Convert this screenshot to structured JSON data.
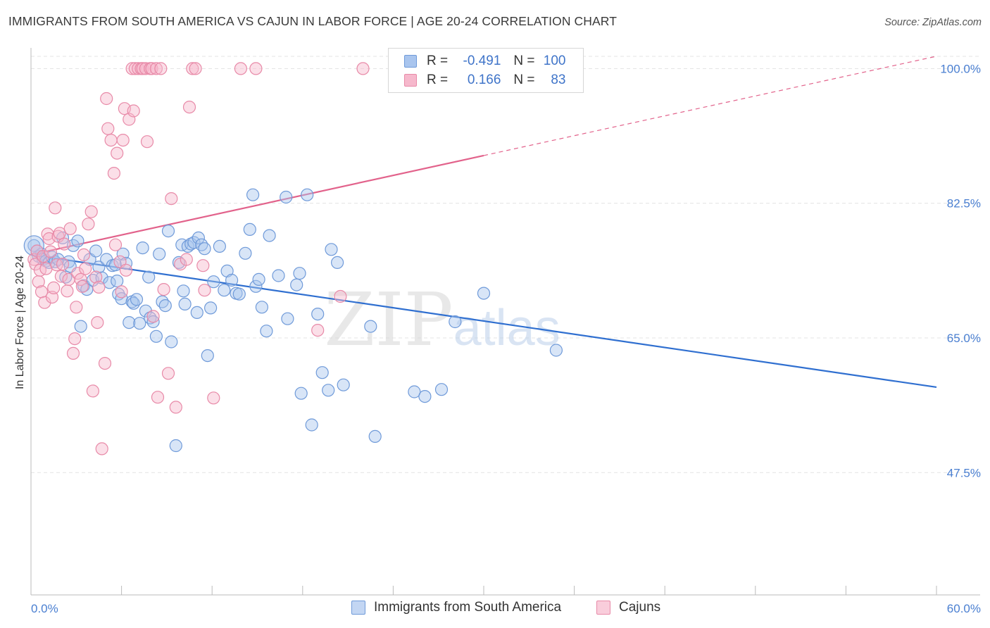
{
  "title": "IMMIGRANTS FROM SOUTH AMERICA VS CAJUN IN LABOR FORCE | AGE 20-24 CORRELATION CHART",
  "source": "Source: ZipAtlas.com",
  "watermark": "ZIPatlas",
  "legend": {
    "rows": [
      {
        "r_label": "R =",
        "r_value": "-0.491",
        "n_label": "N =",
        "n_value": "100"
      },
      {
        "r_label": "R =",
        "r_value": "0.166",
        "n_label": "N =",
        "n_value": "83"
      }
    ]
  },
  "colors": {
    "blue_fill": "#a9c5ee",
    "blue_stroke": "#6f9ad9",
    "blue_line": "#2f6fd0",
    "pink_fill": "#f6b8cc",
    "pink_stroke": "#e88aa8",
    "pink_line": "#e2628b",
    "grid": "#e3e3e3",
    "tick_text": "#4a7fd1"
  },
  "chart_data": {
    "type": "scatter",
    "title": "IMMIGRANTS FROM SOUTH AMERICA VS CAJUN IN LABOR FORCE | AGE 20-24 CORRELATION CHART",
    "xlabel": "",
    "ylabel": "In Labor Force | Age 20-24",
    "xlim": [
      0,
      60
    ],
    "ylim": [
      30,
      102
    ],
    "x_tick_labels": [
      "0.0%",
      "60.0%"
    ],
    "y_ticks": [
      47.5,
      65.0,
      82.5,
      100.0
    ],
    "y_tick_labels": [
      "47.5%",
      "65.0%",
      "82.5%",
      "100.0%"
    ],
    "grid": true,
    "legend_position": "top-center",
    "series": [
      {
        "name": "Immigrants from South America",
        "color": "#a9c5ee",
        "trend": {
          "x0": 0,
          "y0": 75.8,
          "x1": 60,
          "y1": 58.6
        },
        "points": [
          [
            0.2,
            77.0
          ],
          [
            0.4,
            76.3
          ],
          [
            0.5,
            75.6
          ],
          [
            0.7,
            75.9
          ],
          [
            0.8,
            75.2
          ],
          [
            1.0,
            75.0
          ],
          [
            1.2,
            74.8
          ],
          [
            1.4,
            75.5
          ],
          [
            1.6,
            74.9
          ],
          [
            1.8,
            75.2
          ],
          [
            2.1,
            78.0
          ],
          [
            2.3,
            72.9
          ],
          [
            2.5,
            74.9
          ],
          [
            2.6,
            74.3
          ],
          [
            2.8,
            77.0
          ],
          [
            3.1,
            77.6
          ],
          [
            3.3,
            66.5
          ],
          [
            3.5,
            71.8
          ],
          [
            3.7,
            71.3
          ],
          [
            3.9,
            75.2
          ],
          [
            4.1,
            72.5
          ],
          [
            4.3,
            76.3
          ],
          [
            4.5,
            74.2
          ],
          [
            4.7,
            72.8
          ],
          [
            5.0,
            75.2
          ],
          [
            5.2,
            72.2
          ],
          [
            5.4,
            74.4
          ],
          [
            5.6,
            74.5
          ],
          [
            5.7,
            72.4
          ],
          [
            5.8,
            70.7
          ],
          [
            6.0,
            70.1
          ],
          [
            6.1,
            75.9
          ],
          [
            6.3,
            74.7
          ],
          [
            6.5,
            67.0
          ],
          [
            6.7,
            69.7
          ],
          [
            6.8,
            69.5
          ],
          [
            7.0,
            70.0
          ],
          [
            7.2,
            66.9
          ],
          [
            7.4,
            76.7
          ],
          [
            7.6,
            68.5
          ],
          [
            7.8,
            72.9
          ],
          [
            7.9,
            67.6
          ],
          [
            8.1,
            67.1
          ],
          [
            8.3,
            65.2
          ],
          [
            8.5,
            75.9
          ],
          [
            8.7,
            69.7
          ],
          [
            8.9,
            69.2
          ],
          [
            9.1,
            78.9
          ],
          [
            9.3,
            64.5
          ],
          [
            9.6,
            51.0
          ],
          [
            9.8,
            74.8
          ],
          [
            10.0,
            77.1
          ],
          [
            10.1,
            71.1
          ],
          [
            10.2,
            69.4
          ],
          [
            10.4,
            76.9
          ],
          [
            10.6,
            77.2
          ],
          [
            10.8,
            77.4
          ],
          [
            11.0,
            68.3
          ],
          [
            11.1,
            78.0
          ],
          [
            11.3,
            77.1
          ],
          [
            11.5,
            76.6
          ],
          [
            11.7,
            62.7
          ],
          [
            11.9,
            68.9
          ],
          [
            12.1,
            72.3
          ],
          [
            12.5,
            76.9
          ],
          [
            12.8,
            71.2
          ],
          [
            13.0,
            73.7
          ],
          [
            13.3,
            72.5
          ],
          [
            13.6,
            70.8
          ],
          [
            13.8,
            70.7
          ],
          [
            14.2,
            76.0
          ],
          [
            14.5,
            79.1
          ],
          [
            14.7,
            83.6
          ],
          [
            14.9,
            71.7
          ],
          [
            15.1,
            72.6
          ],
          [
            15.3,
            69.0
          ],
          [
            15.6,
            65.9
          ],
          [
            15.8,
            78.3
          ],
          [
            16.4,
            73.1
          ],
          [
            16.9,
            83.3
          ],
          [
            17.0,
            67.5
          ],
          [
            17.6,
            71.9
          ],
          [
            17.8,
            73.4
          ],
          [
            17.9,
            57.8
          ],
          [
            18.3,
            83.6
          ],
          [
            18.6,
            53.7
          ],
          [
            19.0,
            68.1
          ],
          [
            19.3,
            60.5
          ],
          [
            19.7,
            58.2
          ],
          [
            19.9,
            76.5
          ],
          [
            20.3,
            74.8
          ],
          [
            20.7,
            58.9
          ],
          [
            22.5,
            66.5
          ],
          [
            22.8,
            52.2
          ],
          [
            25.4,
            58.0
          ],
          [
            26.1,
            57.4
          ],
          [
            27.2,
            58.3
          ],
          [
            28.1,
            67.1
          ],
          [
            30.0,
            70.8
          ],
          [
            34.8,
            63.4
          ]
        ]
      },
      {
        "name": "Cajuns",
        "color": "#f6b8cc",
        "trend": {
          "x0": 0,
          "y0": 75.8,
          "x1": 30,
          "y1": 88.7,
          "dashed_to": {
            "x": 60,
            "y": 101.6
          }
        },
        "points": [
          [
            0.2,
            75.2
          ],
          [
            0.3,
            74.6
          ],
          [
            0.4,
            76.3
          ],
          [
            0.5,
            72.3
          ],
          [
            0.6,
            73.8
          ],
          [
            0.7,
            71.0
          ],
          [
            0.8,
            75.6
          ],
          [
            0.9,
            69.6
          ],
          [
            1.0,
            74.0
          ],
          [
            1.1,
            78.5
          ],
          [
            1.2,
            77.9
          ],
          [
            1.3,
            76.2
          ],
          [
            1.4,
            70.3
          ],
          [
            1.5,
            71.5
          ],
          [
            1.6,
            81.9
          ],
          [
            1.7,
            74.5
          ],
          [
            1.8,
            78.2
          ],
          [
            1.9,
            78.6
          ],
          [
            2.0,
            73.0
          ],
          [
            2.1,
            74.6
          ],
          [
            2.2,
            77.2
          ],
          [
            2.4,
            71.1
          ],
          [
            2.5,
            72.6
          ],
          [
            2.6,
            79.2
          ],
          [
            2.8,
            63.0
          ],
          [
            2.9,
            64.9
          ],
          [
            3.0,
            69.0
          ],
          [
            3.1,
            73.4
          ],
          [
            3.3,
            72.6
          ],
          [
            3.4,
            71.7
          ],
          [
            3.5,
            75.8
          ],
          [
            3.6,
            74.0
          ],
          [
            3.8,
            79.8
          ],
          [
            4.0,
            81.4
          ],
          [
            4.1,
            58.1
          ],
          [
            4.3,
            72.9
          ],
          [
            4.4,
            67.0
          ],
          [
            4.5,
            71.6
          ],
          [
            4.7,
            50.6
          ],
          [
            4.9,
            61.7
          ],
          [
            5.0,
            96.1
          ],
          [
            5.1,
            92.2
          ],
          [
            5.3,
            90.7
          ],
          [
            5.5,
            86.4
          ],
          [
            5.6,
            77.1
          ],
          [
            5.7,
            89.0
          ],
          [
            5.9,
            74.9
          ],
          [
            6.0,
            71.0
          ],
          [
            6.1,
            90.7
          ],
          [
            6.2,
            94.8
          ],
          [
            6.3,
            73.8
          ],
          [
            6.5,
            93.4
          ],
          [
            6.7,
            100.0
          ],
          [
            6.8,
            94.5
          ],
          [
            6.9,
            100.0
          ],
          [
            7.1,
            100.0
          ],
          [
            7.3,
            100.0
          ],
          [
            7.4,
            100.0
          ],
          [
            7.6,
            100.0
          ],
          [
            7.7,
            90.5
          ],
          [
            7.9,
            100.0
          ],
          [
            8.0,
            100.0
          ],
          [
            8.1,
            67.8
          ],
          [
            8.3,
            100.0
          ],
          [
            8.4,
            57.3
          ],
          [
            8.6,
            100.0
          ],
          [
            8.8,
            71.3
          ],
          [
            9.1,
            60.4
          ],
          [
            9.3,
            83.1
          ],
          [
            9.6,
            56.0
          ],
          [
            9.9,
            74.6
          ],
          [
            10.3,
            75.2
          ],
          [
            10.5,
            95.0
          ],
          [
            10.7,
            100.0
          ],
          [
            10.9,
            100.0
          ],
          [
            11.4,
            74.4
          ],
          [
            11.5,
            71.2
          ],
          [
            12.1,
            57.2
          ],
          [
            13.9,
            100.0
          ],
          [
            14.9,
            100.0
          ],
          [
            19.0,
            66.0
          ],
          [
            20.5,
            70.4
          ],
          [
            22.0,
            100.0
          ]
        ]
      }
    ]
  },
  "bottom_legend": [
    "Immigrants from South America",
    "Cajuns"
  ]
}
